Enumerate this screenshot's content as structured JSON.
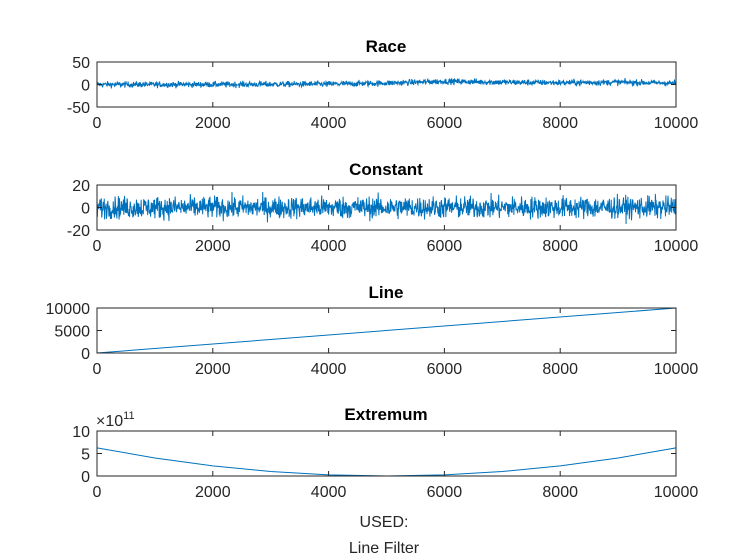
{
  "figure": {
    "xlabel_lines": [
      "USED:",
      "Line Filter"
    ],
    "series_color": "#0072bd"
  },
  "chart_data": [
    {
      "type": "line",
      "title": "Race",
      "xlim": [
        0,
        10000
      ],
      "ylim": [
        -50,
        50
      ],
      "x_ticks": [
        0,
        2000,
        4000,
        6000,
        8000,
        10000
      ],
      "y_ticks": [
        -50,
        0,
        50
      ],
      "x_tick_labels": [
        "0",
        "2000",
        "4000",
        "6000",
        "8000",
        "10000"
      ],
      "y_tick_labels": [
        "-50",
        "0",
        "50"
      ],
      "n_points": 10000,
      "description": "noisy random-walk series",
      "series": [
        {
          "name": "Race",
          "trend": [
            [
              0,
              0
            ],
            [
              2000,
              0
            ],
            [
              4000,
              1
            ],
            [
              5000,
              3
            ],
            [
              6000,
              7
            ],
            [
              7000,
              5
            ],
            [
              8000,
              4
            ],
            [
              9000,
              5
            ],
            [
              10000,
              3
            ]
          ],
          "noise_amplitude": 6
        }
      ]
    },
    {
      "type": "line",
      "title": "Constant",
      "xlim": [
        0,
        10000
      ],
      "ylim": [
        -20,
        20
      ],
      "x_ticks": [
        0,
        2000,
        4000,
        6000,
        8000,
        10000
      ],
      "y_ticks": [
        -20,
        0,
        20
      ],
      "x_tick_labels": [
        "0",
        "2000",
        "4000",
        "6000",
        "8000",
        "10000"
      ],
      "y_tick_labels": [
        "-20",
        "0",
        "20"
      ],
      "n_points": 10000,
      "description": "white noise around zero",
      "series": [
        {
          "name": "Constant",
          "trend": [
            [
              0,
              0
            ],
            [
              10000,
              0
            ]
          ],
          "noise_amplitude": 9
        }
      ]
    },
    {
      "type": "line",
      "title": "Line",
      "xlim": [
        0,
        10000
      ],
      "ylim": [
        0,
        10000
      ],
      "x_ticks": [
        0,
        2000,
        4000,
        6000,
        8000,
        10000
      ],
      "y_ticks": [
        0,
        5000,
        10000
      ],
      "x_tick_labels": [
        "0",
        "2000",
        "4000",
        "6000",
        "8000",
        "10000"
      ],
      "y_tick_labels": [
        "0",
        "5000",
        "10000"
      ],
      "description": "straight line y = x with drop at end",
      "series": [
        {
          "name": "Line",
          "points": [
            [
              0,
              0
            ],
            [
              10000,
              10000
            ],
            [
              10000,
              0
            ]
          ]
        }
      ]
    },
    {
      "type": "line",
      "title": "Extremum",
      "xlim": [
        0,
        10000
      ],
      "ylim": [
        0,
        10
      ],
      "y_exponent_label": "×10",
      "y_exponent_power": "11",
      "x_ticks": [
        0,
        2000,
        4000,
        6000,
        8000,
        10000
      ],
      "y_ticks": [
        0,
        5,
        10
      ],
      "x_tick_labels": [
        "0",
        "2000",
        "4000",
        "6000",
        "8000",
        "10000"
      ],
      "y_tick_labels": [
        "0",
        "5",
        "10"
      ],
      "description": "parabola with minimum at x = 5000 (values in units of 1e11)",
      "series": [
        {
          "name": "Extremum",
          "points": [
            [
              0,
              6.25
            ],
            [
              1000,
              4.0
            ],
            [
              2000,
              2.25
            ],
            [
              3000,
              1.0
            ],
            [
              4000,
              0.25
            ],
            [
              5000,
              0.0
            ],
            [
              6000,
              0.25
            ],
            [
              7000,
              1.0
            ],
            [
              8000,
              2.25
            ],
            [
              9000,
              4.0
            ],
            [
              10000,
              6.25
            ],
            [
              10000,
              0
            ]
          ]
        }
      ]
    }
  ]
}
